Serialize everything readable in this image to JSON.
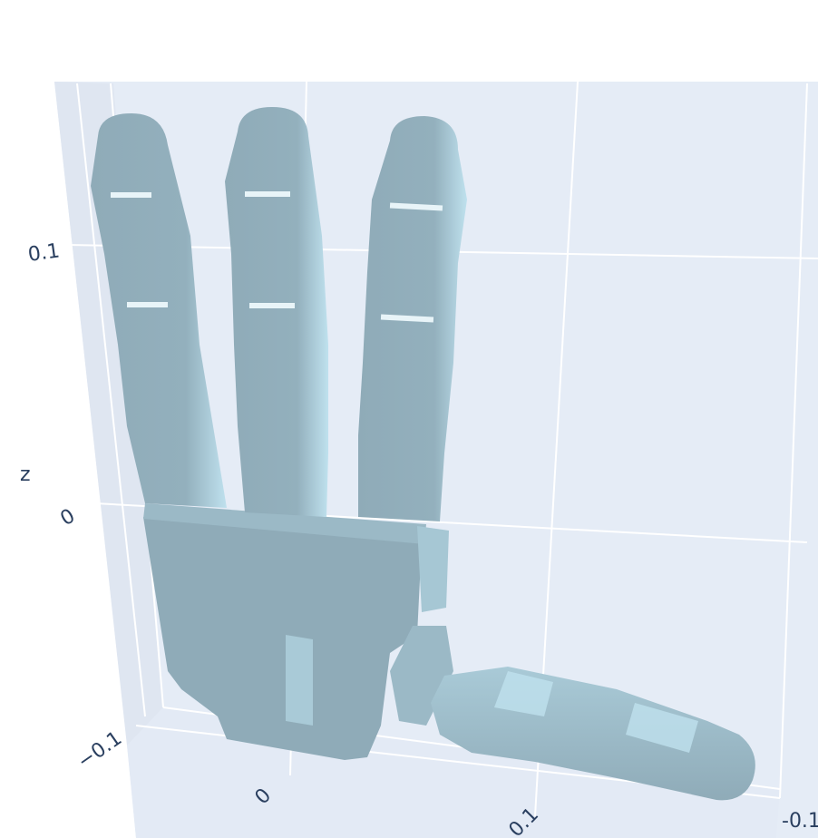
{
  "chart_data": {
    "type": "mesh3d",
    "title": "",
    "axes": {
      "x": {
        "label": "",
        "tick_labels": [
          "0",
          "0.1"
        ]
      },
      "y": {
        "label": "",
        "tick_labels": [
          "-0.1"
        ]
      },
      "z": {
        "label": "z",
        "tick_labels": [
          "0.1",
          "0",
          "−0.1"
        ]
      }
    },
    "grid": true,
    "colors": {
      "background": "#e5ecf6",
      "grid": "#ffffff",
      "mesh_shadow": "#8fabb8",
      "mesh_light": "#bfe1ee"
    },
    "object": "robot-hand-mesh"
  }
}
